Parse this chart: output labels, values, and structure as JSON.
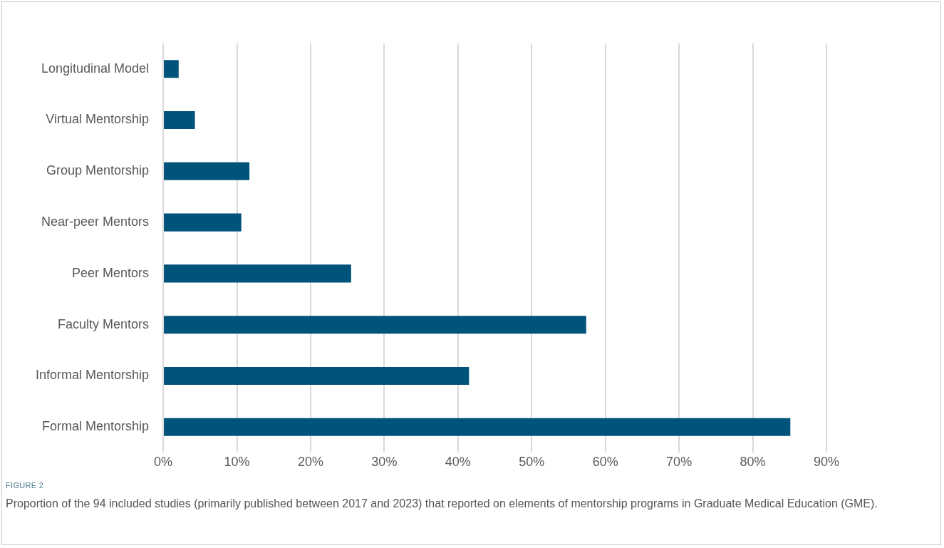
{
  "chart_data": {
    "type": "bar",
    "orientation": "horizontal",
    "categories": [
      "Longitudinal Model",
      "Virtual Mentorship",
      "Group Mentorship",
      "Near-peer Mentors",
      "Peer Mentors",
      "Faculty Mentors",
      "Informal Mentorship",
      "Formal Mentorship"
    ],
    "values": [
      2.1,
      4.3,
      11.7,
      10.6,
      25.5,
      57.4,
      41.5,
      85.1
    ],
    "color": "#00537a",
    "xlim": [
      0,
      90
    ],
    "xticks": [
      {
        "value": 0,
        "label": "0%"
      },
      {
        "value": 10,
        "label": "10%"
      },
      {
        "value": 20,
        "label": "20%"
      },
      {
        "value": 30,
        "label": "30%"
      },
      {
        "value": 40,
        "label": "40%"
      },
      {
        "value": 50,
        "label": "50%"
      },
      {
        "value": 60,
        "label": "60%"
      },
      {
        "value": 70,
        "label": "70%"
      },
      {
        "value": 80,
        "label": "80%"
      },
      {
        "value": 90,
        "label": "90%"
      }
    ],
    "grid": "x",
    "legend": false,
    "annotations": [
      "FIGURE 2",
      "Proportion of the 94 included studies (primarily published between 2017 and 2023) that reported on elements of mentorship programs in Graduate Medical Education (GME)."
    ]
  }
}
